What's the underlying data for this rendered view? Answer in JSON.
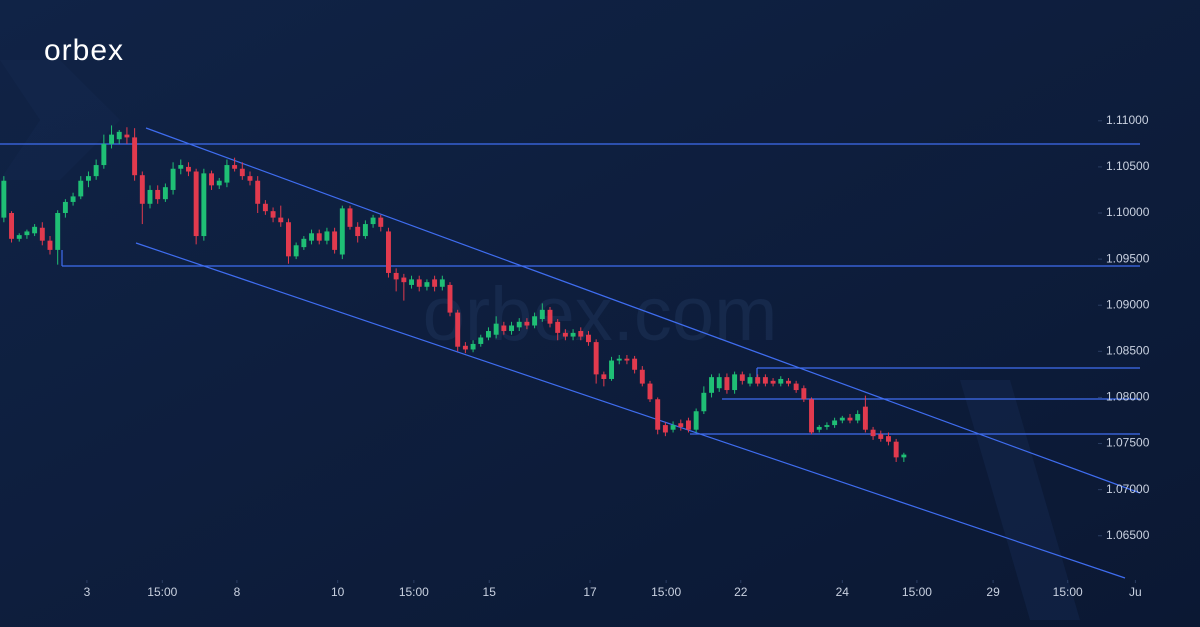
{
  "chart_data": {
    "type": "candlestick",
    "brand": "orbex",
    "watermark": "orbex.com",
    "up_color": "#1fbf75",
    "down_color": "#e23a4e",
    "grid": false,
    "xlim": [
      0,
      156
    ],
    "xticks": [
      {
        "value": 11.3,
        "label": "3"
      },
      {
        "value": 21.1,
        "label": "15:00"
      },
      {
        "value": 30.8,
        "label": "8"
      },
      {
        "value": 43.9,
        "label": "10"
      },
      {
        "value": 53.8,
        "label": "15:00"
      },
      {
        "value": 63.6,
        "label": "15"
      },
      {
        "value": 76.7,
        "label": "17"
      },
      {
        "value": 86.6,
        "label": "15:00"
      },
      {
        "value": 96.3,
        "label": "22"
      },
      {
        "value": 109.5,
        "label": "24"
      },
      {
        "value": 119.2,
        "label": "15:00"
      },
      {
        "value": 129.1,
        "label": "29"
      },
      {
        "value": 138.8,
        "label": "15:00"
      },
      {
        "value": 147.6,
        "label": "Ju"
      }
    ],
    "ylim": [
      1.0602,
      1.1231
    ],
    "yticks": [
      {
        "value": 1.065,
        "label": "1.06500"
      },
      {
        "value": 1.07,
        "label": "1.07000"
      },
      {
        "value": 1.075,
        "label": "1.07500"
      },
      {
        "value": 1.08,
        "label": "1.08000"
      },
      {
        "value": 1.085,
        "label": "1.08500"
      },
      {
        "value": 1.09,
        "label": "1.09000"
      },
      {
        "value": 1.095,
        "label": "1.09500"
      },
      {
        "value": 1.1,
        "label": "1.10000"
      },
      {
        "value": 1.105,
        "label": "1.10500"
      },
      {
        "value": 1.11,
        "label": "1.11000"
      }
    ],
    "ohlc": [
      [
        1.0995,
        1.104,
        1.099,
        1.1035
      ],
      [
        1.1,
        1.1002,
        1.0968,
        1.0972
      ],
      [
        1.0972,
        1.0978,
        1.0969,
        1.0976
      ],
      [
        1.0976,
        1.0982,
        1.0972,
        1.098
      ],
      [
        1.0978,
        1.0988,
        1.0975,
        1.0985
      ],
      [
        1.0984,
        1.099,
        1.0965,
        1.097
      ],
      [
        1.097,
        1.0975,
        1.0955,
        1.096
      ],
      [
        1.096,
        1.1003,
        1.0944,
        1.1
      ],
      [
        1.1,
        1.1015,
        1.0995,
        1.1012
      ],
      [
        1.1012,
        1.1022,
        1.1008,
        1.1018
      ],
      [
        1.1018,
        1.104,
        1.1015,
        1.1035
      ],
      [
        1.1035,
        1.1045,
        1.1028,
        1.104
      ],
      [
        1.104,
        1.1058,
        1.1036,
        1.1052
      ],
      [
        1.1052,
        1.1085,
        1.1048,
        1.1075
      ],
      [
        1.1075,
        1.1095,
        1.107,
        1.1085
      ],
      [
        1.108,
        1.109,
        1.1075,
        1.1088
      ],
      [
        1.1085,
        1.1093,
        1.1075,
        1.1082
      ],
      [
        1.1082,
        1.1092,
        1.1035,
        1.1041
      ],
      [
        1.1041,
        1.1045,
        1.0988,
        1.101
      ],
      [
        1.101,
        1.103,
        1.1005,
        1.1025
      ],
      [
        1.1025,
        1.103,
        1.101,
        1.1015
      ],
      [
        1.1015,
        1.1032,
        1.1012,
        1.1028
      ],
      [
        1.1025,
        1.1055,
        1.102,
        1.1048
      ],
      [
        1.1048,
        1.1058,
        1.1042,
        1.1052
      ],
      [
        1.105,
        1.1055,
        1.104,
        1.1045
      ],
      [
        1.1045,
        1.1048,
        1.0966,
        1.0975
      ],
      [
        1.0975,
        1.1048,
        1.097,
        1.1043
      ],
      [
        1.1043,
        1.1046,
        1.1025,
        1.103
      ],
      [
        1.103,
        1.1038,
        1.1026,
        1.1035
      ],
      [
        1.1033,
        1.1058,
        1.1028,
        1.1052
      ],
      [
        1.1052,
        1.106,
        1.1045,
        1.1048
      ],
      [
        1.1048,
        1.1055,
        1.1036,
        1.104
      ],
      [
        1.104,
        1.1045,
        1.103,
        1.1035
      ],
      [
        1.1035,
        1.104,
        1.1,
        1.101
      ],
      [
        1.101,
        1.1014,
        1.0998,
        1.1002
      ],
      [
        1.1002,
        1.1006,
        1.099,
        1.0995
      ],
      [
        1.0995,
        1.1008,
        1.0985,
        1.099
      ],
      [
        1.099,
        1.0994,
        1.0945,
        1.0953
      ],
      [
        1.0953,
        1.0968,
        1.095,
        1.0965
      ],
      [
        1.0963,
        1.0975,
        1.096,
        1.0972
      ],
      [
        1.097,
        1.0982,
        1.0966,
        1.0978
      ],
      [
        1.0978,
        1.0982,
        1.0966,
        1.097
      ],
      [
        1.097,
        1.0984,
        1.0966,
        1.098
      ],
      [
        1.098,
        1.0984,
        1.0956,
        1.096
      ],
      [
        1.0955,
        1.1008,
        1.095,
        1.1005
      ],
      [
        1.1005,
        1.1008,
        1.0982,
        1.0985
      ],
      [
        1.0985,
        1.099,
        1.0968,
        1.0975
      ],
      [
        1.0975,
        1.0992,
        1.0972,
        1.0988
      ],
      [
        1.0988,
        1.0998,
        1.0984,
        1.0995
      ],
      [
        1.0995,
        1.0998,
        1.098,
        1.0985
      ],
      [
        1.098,
        1.0984,
        1.093,
        1.0935
      ],
      [
        1.0935,
        1.094,
        1.0915,
        1.0928
      ],
      [
        1.093,
        1.0934,
        1.0905,
        1.0925
      ],
      [
        1.0922,
        1.0932,
        1.0918,
        1.0928
      ],
      [
        1.0928,
        1.0932,
        1.0915,
        1.092
      ],
      [
        1.092,
        1.0928,
        1.0916,
        1.0925
      ],
      [
        1.0928,
        1.0932,
        1.0915,
        1.092
      ],
      [
        1.092,
        1.0932,
        1.0916,
        1.0928
      ],
      [
        1.0922,
        1.0925,
        1.0888,
        1.0892
      ],
      [
        1.0892,
        1.0895,
        1.085,
        1.0855
      ],
      [
        1.0856,
        1.086,
        1.0848,
        1.0852
      ],
      [
        1.0852,
        1.0862,
        1.0849,
        1.0858
      ],
      [
        1.0858,
        1.0868,
        1.0855,
        1.0865
      ],
      [
        1.0865,
        1.0876,
        1.0862,
        1.0872
      ],
      [
        1.0868,
        1.0888,
        1.0864,
        1.088
      ],
      [
        1.0878,
        1.0882,
        1.0868,
        1.0872
      ],
      [
        1.0872,
        1.0882,
        1.0868,
        1.0878
      ],
      [
        1.0876,
        1.0886,
        1.0872,
        1.0882
      ],
      [
        1.0882,
        1.0886,
        1.0874,
        1.0878
      ],
      [
        1.0878,
        1.0892,
        1.0875,
        1.0888
      ],
      [
        1.0885,
        1.0902,
        1.0882,
        1.0895
      ],
      [
        1.0895,
        1.0898,
        1.0876,
        1.088
      ],
      [
        1.0882,
        1.0885,
        1.0862,
        1.087
      ],
      [
        1.087,
        1.0874,
        1.0862,
        1.0866
      ],
      [
        1.0866,
        1.0874,
        1.0862,
        1.087
      ],
      [
        1.0872,
        1.0876,
        1.0862,
        1.0866
      ],
      [
        1.0868,
        1.0872,
        1.0856,
        1.086
      ],
      [
        1.086,
        1.0863,
        1.0815,
        1.0825
      ],
      [
        1.0825,
        1.0828,
        1.0812,
        1.082
      ],
      [
        1.082,
        1.0844,
        1.0818,
        1.084
      ],
      [
        1.084,
        1.0846,
        1.0836,
        1.0842
      ],
      [
        1.0842,
        1.0846,
        1.0836,
        1.084
      ],
      [
        1.0842,
        1.0845,
        1.0826,
        1.083
      ],
      [
        1.083,
        1.0834,
        1.0812,
        1.0815
      ],
      [
        1.0815,
        1.0818,
        1.0795,
        1.0798
      ],
      [
        1.0798,
        1.08,
        1.076,
        1.0765
      ],
      [
        1.077,
        1.0773,
        1.0758,
        1.0762
      ],
      [
        1.0765,
        1.0774,
        1.0762,
        1.077
      ],
      [
        1.0772,
        1.0776,
        1.0764,
        1.0768
      ],
      [
        1.0775,
        1.0778,
        1.0762,
        1.0765
      ],
      [
        1.0765,
        1.0788,
        1.0762,
        1.0785
      ],
      [
        1.0785,
        1.0812,
        1.0782,
        1.0805
      ],
      [
        1.0805,
        1.0825,
        1.08,
        1.0822
      ],
      [
        1.081,
        1.0826,
        1.0806,
        1.0822
      ],
      [
        1.0822,
        1.0826,
        1.0804,
        1.0808
      ],
      [
        1.0808,
        1.0828,
        1.0804,
        1.0825
      ],
      [
        1.0825,
        1.0828,
        1.0814,
        1.0818
      ],
      [
        1.0815,
        1.0826,
        1.0812,
        1.0822
      ],
      [
        1.0822,
        1.0825,
        1.0812,
        1.0815
      ],
      [
        1.0822,
        1.0825,
        1.0812,
        1.0815
      ],
      [
        1.0818,
        1.0821,
        1.0812,
        1.0815
      ],
      [
        1.0815,
        1.0823,
        1.0812,
        1.082
      ],
      [
        1.0818,
        1.0821,
        1.0812,
        1.0815
      ],
      [
        1.0815,
        1.0818,
        1.0805,
        1.0808
      ],
      [
        1.081,
        1.0813,
        1.0795,
        1.0798
      ],
      [
        1.0798,
        1.08,
        1.076,
        1.0762
      ],
      [
        1.0765,
        1.077,
        1.0762,
        1.0768
      ],
      [
        1.0768,
        1.0773,
        1.0765,
        1.077
      ],
      [
        1.077,
        1.0778,
        1.0767,
        1.0775
      ],
      [
        1.0775,
        1.078,
        1.0772,
        1.0778
      ],
      [
        1.0778,
        1.0782,
        1.0772,
        1.0775
      ],
      [
        1.0775,
        1.0786,
        1.0772,
        1.0782
      ],
      [
        1.079,
        1.0802,
        1.0762,
        1.0765
      ],
      [
        1.0765,
        1.0768,
        1.0754,
        1.0758
      ],
      [
        1.076,
        1.0764,
        1.0752,
        1.0755
      ],
      [
        1.0758,
        1.0762,
        1.0748,
        1.0752
      ],
      [
        1.0752,
        1.0755,
        1.073,
        1.0735
      ],
      [
        1.0735,
        1.074,
        1.073,
        1.0738
      ]
    ]
  }
}
